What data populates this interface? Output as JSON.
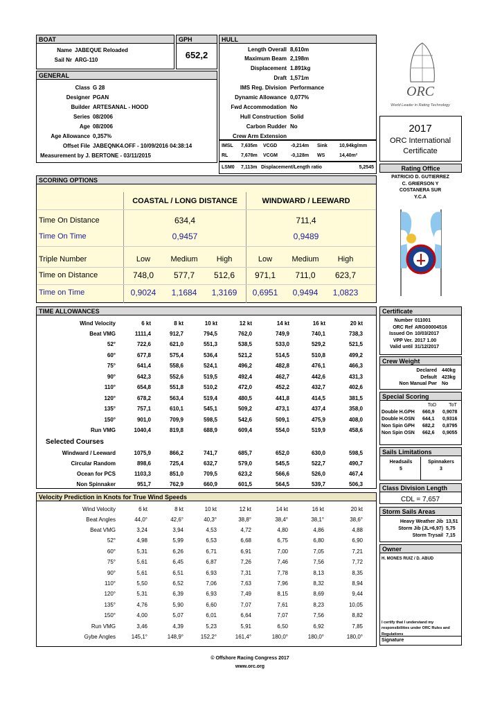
{
  "boat": {
    "title": "BOAT",
    "name_label": "Name",
    "name": "JABEQUE Reloaded",
    "sail_label": "Sail Nr",
    "sail": "ARG-110"
  },
  "gph": {
    "title": "GPH",
    "value": "652,2"
  },
  "hull": {
    "title": "HULL",
    "rows": [
      [
        "Length Overall",
        "8,610m"
      ],
      [
        "Maximum Beam",
        "2,198m"
      ],
      [
        "Displacement",
        "1.891kg"
      ],
      [
        "Draft",
        "1,571m"
      ],
      [
        "IMS Reg. Division",
        "Performance"
      ],
      [
        "Dynamic Allowance",
        "0,077%"
      ],
      [
        "Fwd Accommodation",
        "No"
      ],
      [
        "Hull Construction",
        "Solid"
      ],
      [
        "Carbon Rudder",
        "No"
      ],
      [
        "Crew Arm Extension"
      ]
    ],
    "measures": [
      [
        "IMSL",
        "7,635m",
        "VCGD",
        "-0,214m",
        "Sink",
        "10,94kg/mm"
      ],
      [
        "RL",
        "7,678m",
        "VCGM",
        "-0,128m",
        "WS",
        "14,40m²"
      ],
      [
        "LSM0",
        "7,113m",
        "Displacement/Length ratio",
        "5,2545"
      ]
    ]
  },
  "general": {
    "title": "GENERAL",
    "rows": [
      [
        "Class",
        "G 28"
      ],
      [
        "Designer",
        "PGAN"
      ],
      [
        "Builder",
        "ARTESANAL - HOOD"
      ],
      [
        "Series",
        "08/2006"
      ],
      [
        "Age",
        "08/2006"
      ],
      [
        "Age Allowance",
        "0,357%"
      ],
      [
        "Offset File",
        "JABEQNK4.OFF - 10/09/2016 04:38:14"
      ]
    ],
    "measurement": "Measurement by J. BERTONE - 03/11/2015"
  },
  "logo": {
    "mark": "ORC",
    "tagline": "World Leader in Rating Technology"
  },
  "certificate_title": {
    "year": "2017",
    "line1": "ORC International",
    "line2": "Certificate"
  },
  "rating_office": {
    "title": "Rating Office",
    "lines": [
      "PATRICIO D. GUTIERREZ",
      "C. GRIERSON Y",
      "COSTANERA SUR",
      "Y.C.A"
    ]
  },
  "scoring": {
    "title": "SCORING OPTIONS",
    "headers": [
      "COASTAL / LONG DISTANCE",
      "WINDWARD / LEEWARD"
    ],
    "tod_label": "Time On Distance",
    "tod": [
      "634,4",
      "711,4"
    ],
    "tot_label": "Time On Time",
    "tot": [
      "0,9457",
      "0,9489"
    ],
    "triple_label": "Triple Number",
    "triple_headers": [
      "Low",
      "Medium",
      "High",
      "Low",
      "Medium",
      "High"
    ],
    "rows": [
      {
        "label": "Time on Distance",
        "values": [
          "748,0",
          "577,7",
          "512,6",
          "971,1",
          "711,0",
          "623,7"
        ]
      },
      {
        "label": "Time on Time",
        "values": [
          "0,9024",
          "1,1684",
          "1,3169",
          "0,6951",
          "0,9494",
          "1,0823"
        ]
      }
    ]
  },
  "time_allowances": {
    "title": "TIME ALLOWANCES",
    "header_label": "Wind Velocity",
    "speeds": [
      "6 kt",
      "8 kt",
      "10 kt",
      "12 kt",
      "14 kt",
      "16 kt",
      "20 kt"
    ],
    "rows": [
      {
        "label": "Beat VMG",
        "values": [
          "1111,4",
          "912,7",
          "794,5",
          "762,0",
          "749,9",
          "740,1",
          "738,3"
        ]
      },
      {
        "label": "52°",
        "values": [
          "722,6",
          "621,0",
          "551,3",
          "538,5",
          "533,0",
          "529,2",
          "521,5"
        ]
      },
      {
        "label": "60°",
        "values": [
          "677,8",
          "575,4",
          "536,4",
          "521,2",
          "514,5",
          "510,8",
          "499,2"
        ]
      },
      {
        "label": "75°",
        "values": [
          "641,4",
          "558,6",
          "524,1",
          "496,2",
          "482,8",
          "476,1",
          "466,3"
        ]
      },
      {
        "label": "90°",
        "values": [
          "642,3",
          "552,6",
          "519,5",
          "492,4",
          "462,7",
          "442,6",
          "431,3"
        ]
      },
      {
        "label": "110°",
        "values": [
          "654,8",
          "551,8",
          "510,2",
          "472,0",
          "452,2",
          "432,7",
          "402,6"
        ]
      },
      {
        "label": "120°",
        "values": [
          "678,2",
          "563,4",
          "519,4",
          "480,5",
          "441,8",
          "414,5",
          "381,5"
        ]
      },
      {
        "label": "135°",
        "values": [
          "757,1",
          "610,1",
          "545,1",
          "509,2",
          "473,1",
          "437,4",
          "358,0"
        ]
      },
      {
        "label": "150°",
        "values": [
          "901,0",
          "709,9",
          "598,5",
          "542,6",
          "509,1",
          "475,9",
          "408,0"
        ]
      },
      {
        "label": "Run VMG",
        "values": [
          "1040,4",
          "819,8",
          "688,9",
          "609,4",
          "554,0",
          "519,9",
          "458,6"
        ]
      }
    ],
    "courses_title": "Selected Courses",
    "courses": [
      {
        "label": "Windward / Leeward",
        "values": [
          "1075,9",
          "866,2",
          "741,7",
          "685,7",
          "652,0",
          "630,0",
          "598,5"
        ]
      },
      {
        "label": "Circular Random",
        "values": [
          "898,6",
          "725,4",
          "632,7",
          "579,0",
          "545,5",
          "522,7",
          "490,7"
        ]
      },
      {
        "label": "Ocean for PCS",
        "values": [
          "1103,3",
          "851,0",
          "709,5",
          "623,2",
          "566,6",
          "526,0",
          "467,4"
        ]
      },
      {
        "label": "Non Spinnaker",
        "values": [
          "951,7",
          "762,9",
          "660,9",
          "601,5",
          "564,5",
          "539,7",
          "506,3"
        ]
      }
    ]
  },
  "velocity": {
    "title": "Velocity Prediction in Knots for True Wind Speeds",
    "header_label": "Wind Velocity",
    "speeds": [
      "6 kt",
      "8 kt",
      "10 kt",
      "12 kt",
      "14 kt",
      "16 kt",
      "20 kt"
    ],
    "rows": [
      {
        "label": "Beat Angles",
        "values": [
          "44,0°",
          "42,6°",
          "40,3°",
          "38,8°",
          "38,4°",
          "38,1°",
          "38,6°"
        ]
      },
      {
        "label": "Beat VMG",
        "values": [
          "3,24",
          "3,94",
          "4,53",
          "4,72",
          "4,80",
          "4,86",
          "4,88"
        ]
      },
      {
        "label": "52°",
        "values": [
          "4,98",
          "5,99",
          "6,53",
          "6,68",
          "6,75",
          "6,80",
          "6,90"
        ]
      },
      {
        "label": "60°",
        "values": [
          "5,31",
          "6,26",
          "6,71",
          "6,91",
          "7,00",
          "7,05",
          "7,21"
        ]
      },
      {
        "label": "75°",
        "values": [
          "5,61",
          "6,45",
          "6,87",
          "7,26",
          "7,46",
          "7,56",
          "7,72"
        ]
      },
      {
        "label": "90°",
        "values": [
          "5,61",
          "6,51",
          "6,93",
          "7,31",
          "7,78",
          "8,13",
          "8,35"
        ]
      },
      {
        "label": "110°",
        "values": [
          "5,50",
          "6,52",
          "7,06",
          "7,63",
          "7,96",
          "8,32",
          "8,94"
        ]
      },
      {
        "label": "120°",
        "values": [
          "5,31",
          "6,39",
          "6,93",
          "7,49",
          "8,15",
          "8,69",
          "9,44"
        ]
      },
      {
        "label": "135°",
        "values": [
          "4,76",
          "5,90",
          "6,60",
          "7,07",
          "7,61",
          "8,23",
          "10,05"
        ]
      },
      {
        "label": "150°",
        "values": [
          "4,00",
          "5,07",
          "6,01",
          "6,64",
          "7,07",
          "7,56",
          "8,82"
        ]
      },
      {
        "label": "Run VMG",
        "values": [
          "3,46",
          "4,39",
          "5,23",
          "5,91",
          "6,50",
          "6,92",
          "7,85"
        ]
      },
      {
        "label": "Gybe Angles",
        "values": [
          "145,1°",
          "148,9°",
          "152,2°",
          "161,4°",
          "180,0°",
          "180,0°",
          "180,0°"
        ]
      }
    ]
  },
  "certificate": {
    "title": "Certificate",
    "rows": [
      [
        "Number",
        "011001"
      ],
      [
        "ORC Ref",
        "ARG00004516"
      ],
      [
        "Issued On",
        "10/03/2017"
      ],
      [
        "VPP Ver.",
        "2017 1.00"
      ],
      [
        "Valid until",
        "31/12/2017"
      ]
    ]
  },
  "crew_weight": {
    "title": "Crew Weight",
    "rows": [
      [
        "Declared",
        "440kg"
      ],
      [
        "Default",
        "423kg"
      ],
      [
        "Non Manual Pwr",
        "No"
      ]
    ]
  },
  "special_scoring": {
    "title": "Special Scoring",
    "headers": [
      "ToD",
      "ToT"
    ],
    "rows": [
      [
        "Double H.GPH",
        "660,9",
        "0,9078"
      ],
      [
        "Double H.OSN",
        "644,1",
        "0,9316"
      ],
      [
        "Non Spin GPH",
        "682,2",
        "0,8795"
      ],
      [
        "Non Spin OSN",
        "662,6",
        "0,9055"
      ]
    ]
  },
  "sails_limitations": {
    "title": "Sails Limitations",
    "headers": [
      "Headsails",
      "Spinnakers"
    ],
    "values": [
      "5",
      "3"
    ]
  },
  "class_division": {
    "title": "Class Division Length",
    "value": "CDL = 7,657"
  },
  "storm_sails": {
    "title": "Storm Sails Areas",
    "rows": [
      [
        "Heavy Weather Jib",
        "13,51"
      ],
      [
        "Storm Jib (JL=6,97)",
        "5,75"
      ],
      [
        "Storm Trysail",
        "7,15"
      ]
    ]
  },
  "owner": {
    "title": "Owner",
    "name": "H. MONES RUIZ / D. ABUD",
    "declaration": "I certify that I understand my responsibilities under ORC Rules and Regulations",
    "signature": "Signature"
  },
  "footer": {
    "copyright": "© Offshore Racing Congress 2017",
    "url": "www.orc.org"
  }
}
